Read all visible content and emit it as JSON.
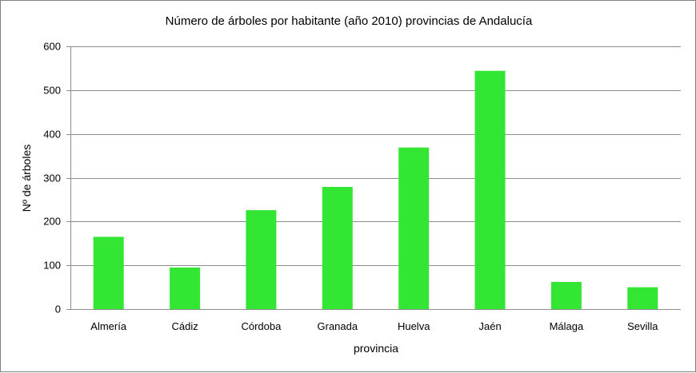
{
  "chart_data": {
    "type": "bar",
    "title": "Número de árboles por habitante (año 2010) provincias de Andalucía",
    "xlabel": "provincia",
    "ylabel": "Nº de árboles",
    "categories": [
      "Almería",
      "Cádiz",
      "Córdoba",
      "Granada",
      "Huelva",
      "Jaén",
      "Málaga",
      "Sevilla"
    ],
    "values": [
      165,
      95,
      226,
      279,
      369,
      544,
      62,
      50
    ],
    "ylim": [
      0,
      600
    ],
    "yticks": [
      "0",
      "100",
      "200",
      "300",
      "400",
      "500",
      "600"
    ],
    "grid": true,
    "legend": "none",
    "colors": {
      "bar": "#33e633",
      "grid": "#8c8c8c",
      "axis": "#8c8c8c"
    }
  }
}
